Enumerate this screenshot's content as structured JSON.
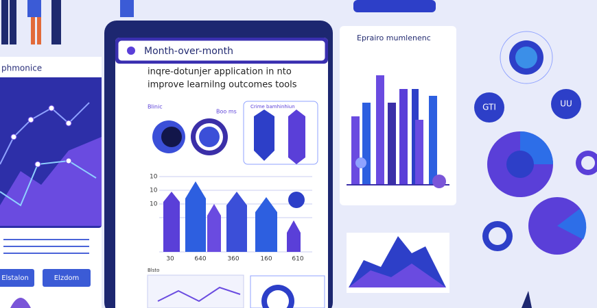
{
  "left_panel": {
    "title": "phmonice",
    "buttons": [
      "Elstalon",
      "Elzdom"
    ]
  },
  "center_screen": {
    "header": "Month-over-month",
    "lines": [
      "inqre-dotunjer application in nto",
      "improve learnilng outcomes tools"
    ],
    "labels": [
      "Blinic",
      "Boo ms",
      "Crime bamhinhiun"
    ],
    "axis_labels": [
      "10",
      "10",
      "10"
    ],
    "x_labels": [
      "30",
      "640",
      "360",
      "160",
      "610"
    ],
    "footer": "Blsto"
  },
  "right_panel": {
    "title": "Eprairo mumlenenc"
  },
  "badges": [
    "GTI",
    "UU"
  ]
}
